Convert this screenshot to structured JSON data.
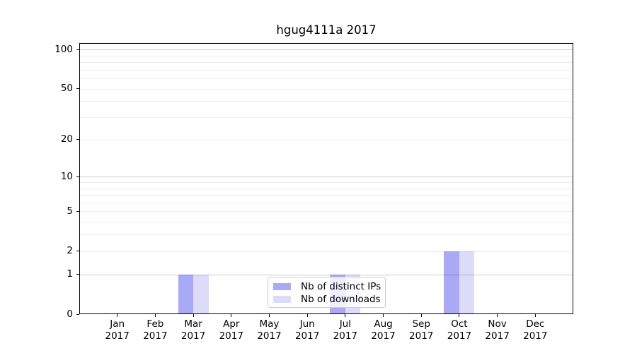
{
  "chart_data": {
    "type": "bar",
    "title": "hgug4111a 2017",
    "categories": [
      {
        "line1": "Jan",
        "line2": "2017"
      },
      {
        "line1": "Feb",
        "line2": "2017"
      },
      {
        "line1": "Mar",
        "line2": "2017"
      },
      {
        "line1": "Apr",
        "line2": "2017"
      },
      {
        "line1": "May",
        "line2": "2017"
      },
      {
        "line1": "Jun",
        "line2": "2017"
      },
      {
        "line1": "Jul",
        "line2": "2017"
      },
      {
        "line1": "Aug",
        "line2": "2017"
      },
      {
        "line1": "Sep",
        "line2": "2017"
      },
      {
        "line1": "Oct",
        "line2": "2017"
      },
      {
        "line1": "Nov",
        "line2": "2017"
      },
      {
        "line1": "Dec",
        "line2": "2017"
      }
    ],
    "series": [
      {
        "name": "Nb of distinct IPs",
        "color": "#a9a9f6",
        "values": [
          0,
          0,
          1,
          0,
          0,
          0,
          1,
          0,
          0,
          2,
          0,
          0
        ]
      },
      {
        "name": "Nb of downloads",
        "color": "#dcdcf9",
        "values": [
          0,
          0,
          1,
          0,
          0,
          0,
          1,
          0,
          0,
          2,
          0,
          0
        ]
      }
    ],
    "y_axis": {
      "scale": "log1p",
      "max": 112,
      "ticks": [
        0,
        1,
        2,
        5,
        10,
        20,
        50,
        100
      ],
      "major_gridlines": [
        1,
        10,
        100
      ],
      "minor_gridlines": [
        2,
        3,
        4,
        5,
        6,
        7,
        8,
        9,
        20,
        30,
        40,
        50,
        60,
        70,
        80,
        90
      ]
    },
    "legend_position": "lower-center",
    "grid_major_color": "rgba(0,0,0,0.20)",
    "grid_minor_color": "rgba(0,0,0,0.07)",
    "axis_color": "#000000",
    "text_color": "#000000",
    "background": "#ffffff"
  }
}
